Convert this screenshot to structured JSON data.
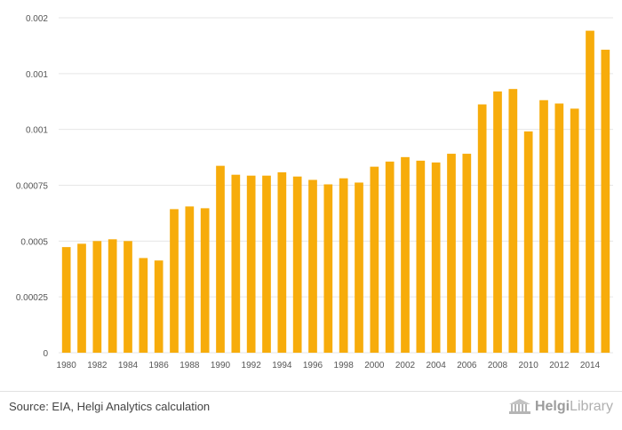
{
  "chart_data": {
    "type": "bar",
    "title": "",
    "xlabel": "",
    "ylabel": "",
    "ylim": [
      0,
      0.0015
    ],
    "y_ticks": [
      0,
      0.00025,
      0.0005,
      0.00075,
      0.001,
      0.00125,
      0.0015
    ],
    "y_tick_labels": [
      "0",
      "0.00025",
      "0.0005",
      "0.00075",
      "0.001",
      "0.001",
      "0.002"
    ],
    "categories": [
      "1980",
      "1981",
      "1982",
      "1983",
      "1984",
      "1985",
      "1986",
      "1987",
      "1988",
      "1989",
      "1990",
      "1991",
      "1992",
      "1993",
      "1994",
      "1995",
      "1996",
      "1997",
      "1998",
      "1999",
      "2000",
      "2001",
      "2002",
      "2003",
      "2004",
      "2005",
      "2006",
      "2007",
      "2008",
      "2009",
      "2010",
      "2011",
      "2012",
      "2013",
      "2014",
      "2015"
    ],
    "x_tick_labels": [
      "1980",
      "1982",
      "1984",
      "1986",
      "1988",
      "1990",
      "1992",
      "1994",
      "1996",
      "1998",
      "2000",
      "2002",
      "2004",
      "2006",
      "2008",
      "2010",
      "2012",
      "2014"
    ],
    "values": [
      0.000473,
      0.000488,
      0.0005,
      0.000508,
      0.0005,
      0.000424,
      0.000413,
      0.000643,
      0.000655,
      0.000647,
      0.000837,
      0.000797,
      0.000793,
      0.000793,
      0.000808,
      0.000789,
      0.000774,
      0.000754,
      0.000781,
      0.000762,
      0.000833,
      0.000856,
      0.000876,
      0.00086,
      0.000852,
      0.000891,
      0.000891,
      0.001112,
      0.00117,
      0.001181,
      0.000991,
      0.001131,
      0.001116,
      0.001093,
      0.001442,
      0.001357
    ],
    "colors": {
      "bar": "#f7ac0b",
      "grid": "#e6e6e6"
    }
  },
  "footer": {
    "source": "Source: EIA, Helgi Analytics calculation",
    "logo_helgi": "Helgi",
    "logo_library": "Library"
  }
}
